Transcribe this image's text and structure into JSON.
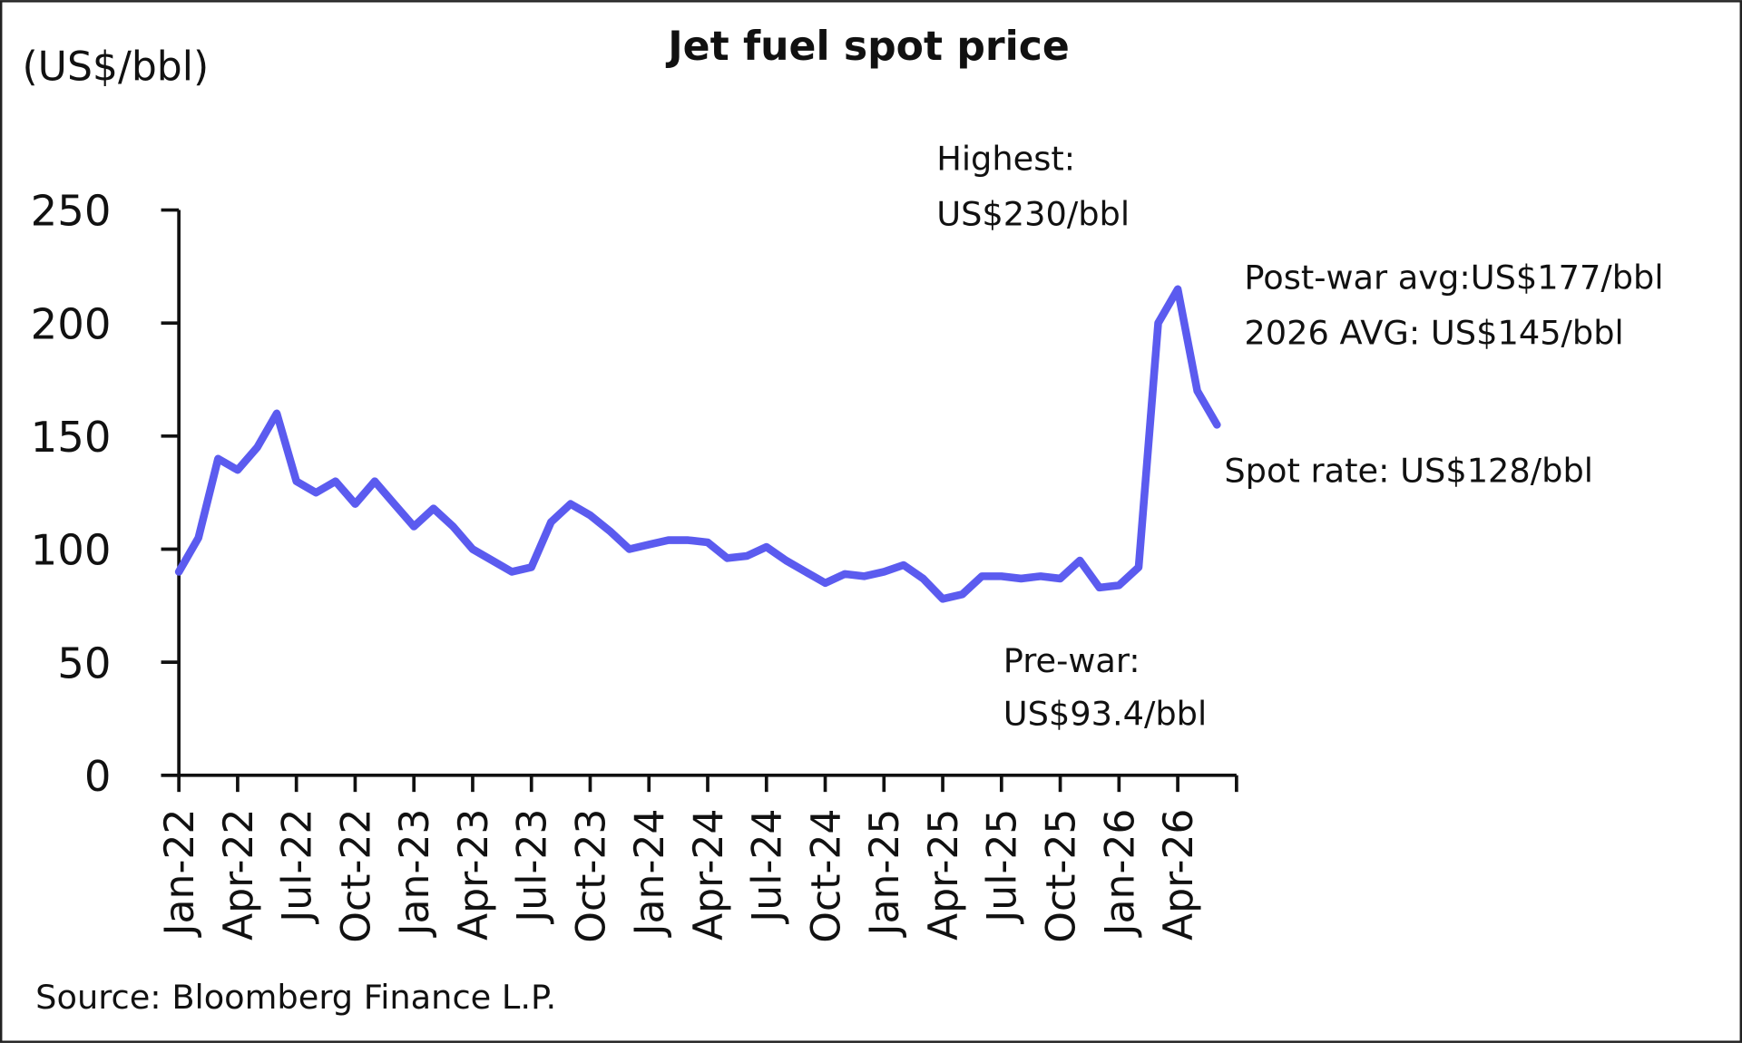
{
  "chart_data": {
    "type": "line",
    "title": "Jet fuel spot price",
    "y_label": "(US$/bbl)",
    "source": "Source: Bloomberg Finance L.P.",
    "annotations": [
      "Highest:",
      "US$230/bbl",
      "Post-war avg:US$177/bbl",
      "2026 AVG: US$145/bbl",
      "Spot rate: US$128/bbl",
      "Pre-war:",
      "US$93.4/bbl"
    ],
    "categories": [
      "Jan-22",
      null,
      null,
      "Apr-22",
      null,
      null,
      "Jul-22",
      null,
      null,
      "Oct-22",
      null,
      null,
      "Jan-23",
      null,
      null,
      "Apr-23",
      null,
      null,
      "Jul-23",
      null,
      null,
      "Oct-23",
      null,
      null,
      "Jan-24",
      null,
      null,
      "Apr-24",
      null,
      null,
      "Jul-24",
      null,
      null,
      "Oct-24",
      null,
      null,
      "Jan-25",
      null,
      null,
      "Apr-25",
      null,
      null,
      "Jul-25",
      null,
      null,
      "Oct-25",
      null,
      null,
      "Jan-26",
      null,
      null,
      "Apr-26",
      null,
      null,
      null
    ],
    "values": [
      90,
      105,
      140,
      135,
      145,
      160,
      130,
      125,
      130,
      120,
      130,
      120,
      110,
      118,
      110,
      100,
      95,
      90,
      92,
      112,
      120,
      115,
      108,
      100,
      102,
      104,
      104,
      103,
      96,
      97,
      101,
      95,
      90,
      85,
      89,
      88,
      90,
      93,
      87,
      78,
      80,
      88,
      88,
      87,
      88,
      87,
      95,
      83,
      84,
      92,
      200,
      215,
      170,
      155,
      null
    ],
    "color": "#5b5bef",
    "ylim": [
      0,
      250
    ],
    "yticks": [
      0,
      50,
      100,
      150,
      200,
      250
    ],
    "grid": false
  }
}
